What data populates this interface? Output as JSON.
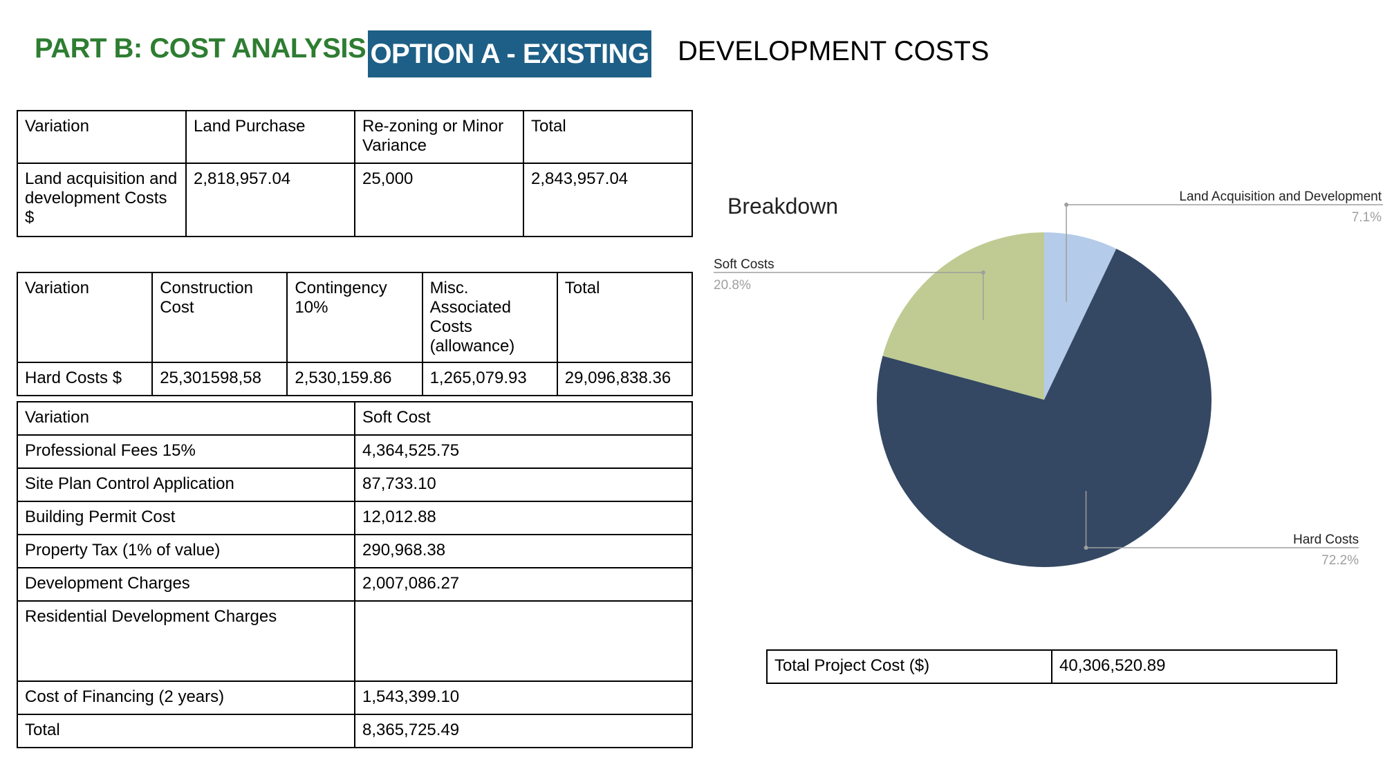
{
  "header": {
    "part": "PART B: COST ANALYSIS",
    "option": "OPTION A - EXISTING",
    "subtitle": "DEVELOPMENT COSTS"
  },
  "land_table": {
    "headers": [
      "Variation",
      "Land Purchase",
      "Re-zoning or Minor Variance",
      "Total"
    ],
    "row": [
      "Land acquisition and development Costs $",
      "2,818,957.04",
      "25,000",
      "2,843,957.04"
    ]
  },
  "hard_table": {
    "headers": [
      "Variation",
      "Construction Cost",
      "Contingency 10%",
      "Misc. Associated Costs (allowance)",
      "Total"
    ],
    "row": [
      "Hard Costs $",
      "25,301598,58",
      "2,530,159.86",
      "1,265,079.93",
      "29,096,838.36"
    ]
  },
  "soft_table": {
    "headers": [
      "Variation",
      "Soft Cost"
    ],
    "rows": [
      [
        "Professional Fees 15%",
        "4,364,525.75"
      ],
      [
        "Site Plan Control Application",
        "87,733.10"
      ],
      [
        "Building Permit Cost",
        "12,012.88"
      ],
      [
        "Property Tax (1% of value)",
        "290,968.38"
      ],
      [
        "Development Charges",
        "2,007,086.27"
      ],
      [
        "Residential Development Charges",
        ""
      ],
      [
        "Cost of Financing (2 years)",
        "1,543,399.10"
      ],
      [
        "Total",
        "8,365,725.49"
      ]
    ]
  },
  "total_table": {
    "label": "Total Project Cost ($)",
    "value": "40,306,520.89"
  },
  "chart_data": {
    "type": "pie",
    "title": "Breakdown",
    "categories": [
      "Land Acquisition and Development",
      "Hard Costs",
      "Soft Costs"
    ],
    "values": [
      7.1,
      72.2,
      20.8
    ],
    "labels": [
      "7.1%",
      "72.2%",
      "20.8%"
    ],
    "colors": [
      "#b4cbe9",
      "#344863",
      "#bfcb93"
    ],
    "legend": "none"
  }
}
